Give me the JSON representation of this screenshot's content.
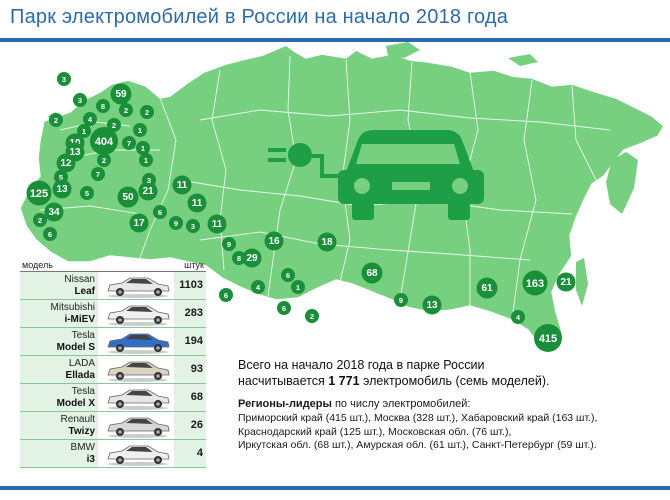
{
  "header": {
    "title": "Парк электромобилей в России на начало 2018 года"
  },
  "map": {
    "fill_color": "#77d07f",
    "bubble_color": "#1a8f3a",
    "icon_color": "#1e9e46",
    "regions": [
      {
        "value": "3"
      },
      {
        "value": "59"
      },
      {
        "value": "3"
      },
      {
        "value": "8"
      },
      {
        "value": "2"
      },
      {
        "value": "4"
      },
      {
        "value": "2"
      },
      {
        "value": "404"
      },
      {
        "value": "1"
      },
      {
        "value": "7"
      },
      {
        "value": "10"
      },
      {
        "value": "12"
      },
      {
        "value": "2"
      },
      {
        "value": "1"
      },
      {
        "value": "2"
      },
      {
        "value": "13"
      },
      {
        "value": "1"
      },
      {
        "value": "2"
      },
      {
        "value": "7"
      },
      {
        "value": "5"
      },
      {
        "value": "1"
      },
      {
        "value": "125"
      },
      {
        "value": "13"
      },
      {
        "value": "5"
      },
      {
        "value": "21"
      },
      {
        "value": "50"
      },
      {
        "value": "3"
      },
      {
        "value": "34"
      },
      {
        "value": "2"
      },
      {
        "value": "6"
      },
      {
        "value": "11"
      },
      {
        "value": "17"
      },
      {
        "value": "6"
      },
      {
        "value": "11"
      },
      {
        "value": "9"
      },
      {
        "value": "11"
      },
      {
        "value": "3"
      },
      {
        "value": "9"
      },
      {
        "value": "16"
      },
      {
        "value": "18"
      },
      {
        "value": "29"
      },
      {
        "value": "8"
      },
      {
        "value": "6"
      },
      {
        "value": "68"
      },
      {
        "value": "4"
      },
      {
        "value": "1"
      },
      {
        "value": "6"
      },
      {
        "value": "6"
      },
      {
        "value": "2"
      },
      {
        "value": "9"
      },
      {
        "value": "13"
      },
      {
        "value": "61"
      },
      {
        "value": "163"
      },
      {
        "value": "21"
      },
      {
        "value": "4"
      },
      {
        "value": "415"
      }
    ]
  },
  "table": {
    "header_model": "модель",
    "header_qty": "штук",
    "rows": [
      {
        "make": "Nissan",
        "model": "Leaf",
        "qty": "1103",
        "car_color": "#e8e8e8"
      },
      {
        "make": "Mitsubishi",
        "model": "i-MiEV",
        "qty": "283",
        "car_color": "#eef0f2"
      },
      {
        "make": "Tesla",
        "model": "Model S",
        "qty": "194",
        "car_color": "#2f6fc9"
      },
      {
        "make": "LADA",
        "model": "Ellada",
        "qty": "93",
        "car_color": "#d9d3bf"
      },
      {
        "make": "Tesla",
        "model": "Model X",
        "qty": "68",
        "car_color": "#e6e6e6"
      },
      {
        "make": "Renault",
        "model": "Twizy",
        "qty": "26",
        "car_color": "#d7d7d7"
      },
      {
        "make": "BMW",
        "model": "i3",
        "qty": "4",
        "car_color": "#f0f0f0"
      }
    ]
  },
  "summary": {
    "line1": "Всего на начало 2018 года в парке России",
    "line2_pre": "насчитывается ",
    "line2_bold": "1 771",
    "line2_post": " электромобиль (семь моделей).",
    "leaders_bold": "Регионы-лидеры",
    "leaders_rest": " по числу электромобилей:",
    "leaders_lines": [
      "Приморский край (415 шт.), Москва (328 шт.), Хабаровский край (163 шт.),",
      "Краснодарский край (125 шт.), Московская обл. (76 шт.),",
      "Иркутская обл. (68 шт.), Амурская обл. (61 шт.),  Санкт-Петербург (59 шт.)."
    ]
  }
}
